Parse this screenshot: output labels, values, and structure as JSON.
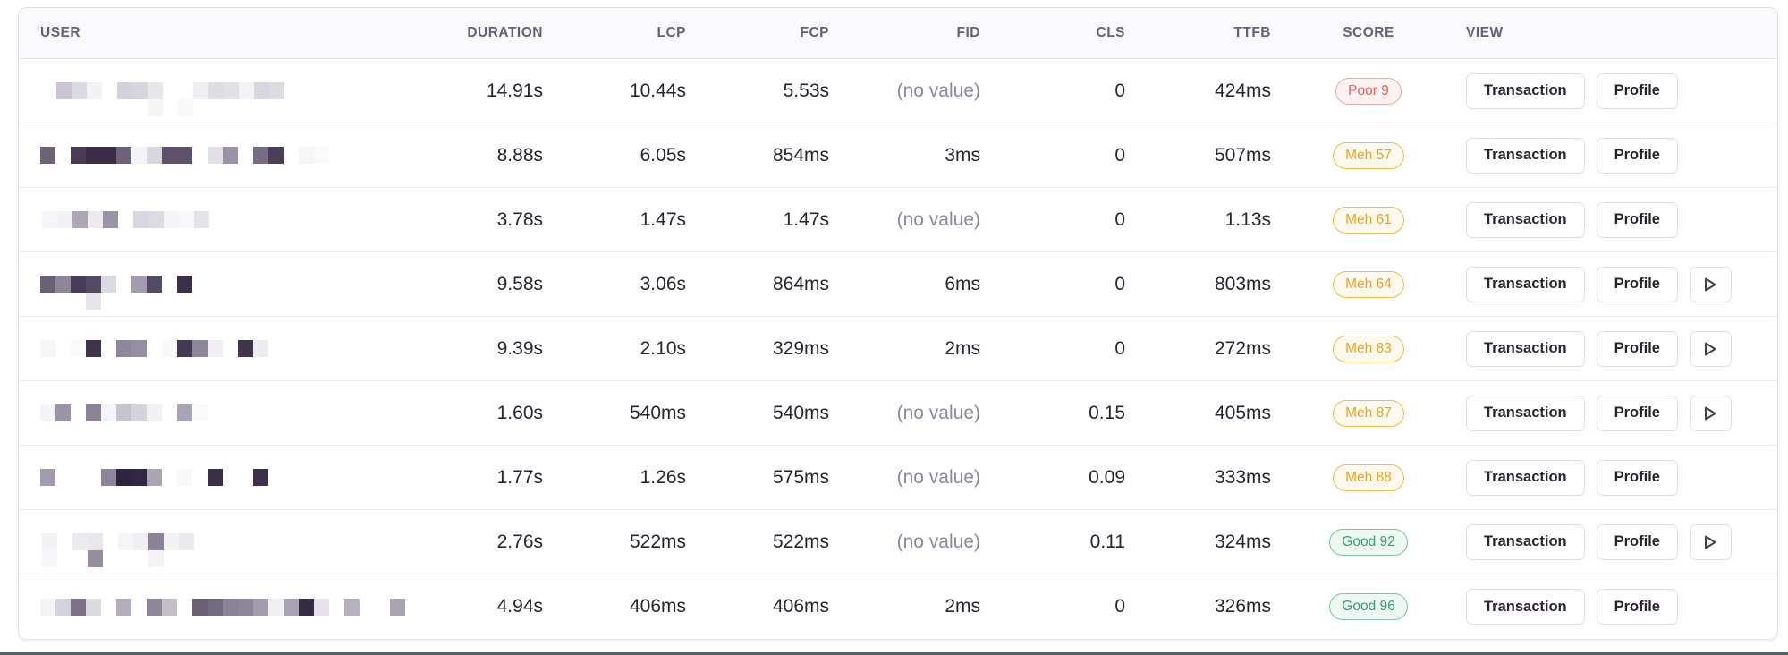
{
  "table": {
    "columns": [
      {
        "key": "user",
        "label": "USER",
        "align": "left"
      },
      {
        "key": "duration",
        "label": "DURATION",
        "align": "right"
      },
      {
        "key": "lcp",
        "label": "LCP",
        "align": "right"
      },
      {
        "key": "fcp",
        "label": "FCP",
        "align": "right"
      },
      {
        "key": "fid",
        "label": "FID",
        "align": "right"
      },
      {
        "key": "cls",
        "label": "CLS",
        "align": "right"
      },
      {
        "key": "ttfb",
        "label": "TTFB",
        "align": "right"
      },
      {
        "key": "score",
        "label": "SCORE",
        "align": "center"
      },
      {
        "key": "view",
        "label": "VIEW",
        "align": "left"
      }
    ],
    "no_value_text": "(no value)",
    "view_buttons": {
      "transaction": "Transaction",
      "profile": "Profile",
      "replay_icon": "play-icon"
    },
    "rows": [
      {
        "user_redacted": {
          "line1": [
            "#c9c6d1",
            "#dbd9e1",
            "#f2f1f5",
            "_",
            "#d3d1d9",
            "#d7d5dc",
            "#e7e6eb",
            "_",
            "_",
            "#f0eff3",
            "#dedce3",
            "#e2e0e7",
            "#f3f2f5",
            "#d7d5dd",
            "#dddbe2"
          ],
          "line2": [
            "_",
            "_",
            "_",
            "_",
            "_",
            "_",
            "#f5f5f8",
            "_",
            "#f8f8fa"
          ],
          "indent": 18
        },
        "duration": "14.91s",
        "lcp": "10.44s",
        "fcp": "5.53s",
        "fid": "(no value)",
        "cls": "0",
        "ttfb": "424ms",
        "score": {
          "label": "Poor 9",
          "level": "poor"
        },
        "has_replay": false
      },
      {
        "user_redacted": {
          "line1": [
            "#6d6378",
            "_",
            "#473c53",
            "#382d45",
            "#382d45",
            "#6d6378",
            "#f4f4f6",
            "#d9d7de",
            "#5e5269",
            "#5e5269",
            "_",
            "#e2e0e6",
            "#9b93a5",
            "_",
            "#766c83",
            "#4a3f57",
            "_",
            "#f6f6f8",
            "#fafafa"
          ],
          "line2": null,
          "indent": 0
        },
        "duration": "8.88s",
        "lcp": "6.05s",
        "fcp": "854ms",
        "fid": "3ms",
        "cls": "0",
        "ttfb": "507ms",
        "score": {
          "label": "Meh 57",
          "level": "meh"
        },
        "has_replay": false
      },
      {
        "user_redacted": {
          "line1": [
            "#f6f6f8",
            "#f2f2f5",
            "#ada7b5",
            "#eceaef",
            "#9a93a5",
            "_",
            "#d8d6de",
            "#dddbe2",
            "#f5f4f7",
            "#f8f8fa",
            "#e4e2e8"
          ],
          "line2": null,
          "indent": 2
        },
        "duration": "3.78s",
        "lcp": "1.47s",
        "fcp": "1.47s",
        "fid": "(no value)",
        "cls": "0",
        "ttfb": "1.13s",
        "score": {
          "label": "Meh 61",
          "level": "meh"
        },
        "has_replay": false
      },
      {
        "user_redacted": {
          "line1": [
            "#6a6076",
            "#8d8598",
            "#473c57",
            "#544a63",
            "#dcdae1",
            "_",
            "#a39cae",
            "#544a63",
            "_",
            "#3b3048"
          ],
          "line2": [
            "_",
            "_",
            "_",
            "#e7e5ea"
          ],
          "indent": 0
        },
        "duration": "9.58s",
        "lcp": "3.06s",
        "fcp": "864ms",
        "fid": "6ms",
        "cls": "0",
        "ttfb": "803ms",
        "score": {
          "label": "Meh 64",
          "level": "meh"
        },
        "has_replay": true
      },
      {
        "user_redacted": {
          "line1": [
            "#f6f6f8",
            "_",
            "#fafafa",
            "#3f344c",
            "_",
            "#8f8799",
            "#968fa0",
            "_",
            "#f8f8fa",
            "#443952",
            "#8d8598",
            "#f0eff3",
            "_",
            "#3f344c",
            "#ececf0"
          ],
          "line2": null,
          "indent": 0
        },
        "duration": "9.39s",
        "lcp": "2.10s",
        "fcp": "329ms",
        "fid": "2ms",
        "cls": "0",
        "ttfb": "272ms",
        "score": {
          "label": "Meh 83",
          "level": "meh"
        },
        "has_replay": true
      },
      {
        "user_redacted": {
          "line1": [
            "#f4f4f6",
            "#9b94a6",
            "_",
            "#8b8395",
            "#f5f5f7",
            "#c7c4cf",
            "#d5d3da",
            "#f2f1f4",
            "_",
            "#aaa4b2",
            "#fafafa"
          ],
          "line2": null,
          "indent": 0
        },
        "duration": "1.60s",
        "lcp": "540ms",
        "fcp": "540ms",
        "fid": "(no value)",
        "cls": "0.15",
        "ttfb": "405ms",
        "score": {
          "label": "Meh 87",
          "level": "meh"
        },
        "has_replay": true
      },
      {
        "user_redacted": {
          "line1": [
            "#a29bad",
            "_",
            "_",
            "_",
            "#8d8599",
            "#2f2440",
            "#312744",
            "#aba4b3",
            "_",
            "#f8f8fa",
            "_",
            "#3a2f47",
            "_",
            "_",
            "#3c3149"
          ],
          "line2": null,
          "indent": 0
        },
        "duration": "1.77s",
        "lcp": "1.26s",
        "fcp": "575ms",
        "fid": "(no value)",
        "cls": "0.09",
        "ttfb": "333ms",
        "score": {
          "label": "Meh 88",
          "level": "meh"
        },
        "has_replay": false
      },
      {
        "user_redacted": {
          "line1": [
            "#f2f2f5",
            "_",
            "#eceaef",
            "#e8e7ec",
            "_",
            "#f6f6f8",
            "#f0eff3",
            "#8b8295",
            "#f2f1f4",
            "#eceaef"
          ],
          "line2": [
            "#f6f6f8",
            "_",
            "_",
            "#958da0",
            "_",
            "_",
            "_",
            "#f4f4f6"
          ],
          "indent": 2
        },
        "duration": "2.76s",
        "lcp": "522ms",
        "fcp": "522ms",
        "fid": "(no value)",
        "cls": "0.11",
        "ttfb": "324ms",
        "score": {
          "label": "Good 92",
          "level": "good"
        },
        "has_replay": true
      },
      {
        "user_redacted": {
          "line1": [
            "#f4f4f6",
            "#d5d3da",
            "#7c7389",
            "#dcdae1",
            "_",
            "#b4aebc",
            "_",
            "#8d8598",
            "#c2bfca",
            "_",
            "#6b6177",
            "#746a81",
            "#8a8295",
            "#8d8598",
            "#a29bad",
            "#f0eff3",
            "#a8a2b1",
            "#362b44",
            "#e4e2e8",
            "_",
            "#b7b1bf",
            "_",
            "_",
            "#aaa4b2"
          ],
          "line2": null,
          "indent": 0
        },
        "duration": "4.94s",
        "lcp": "406ms",
        "fcp": "406ms",
        "fid": "2ms",
        "cls": "0",
        "ttfb": "326ms",
        "score": {
          "label": "Good 96",
          "level": "good"
        },
        "has_replay": false
      }
    ]
  },
  "colors": {
    "value_text": "#2b2233",
    "muted_text": "#8d86a0",
    "header_text": "#696077",
    "header_bg": "#faf9fb",
    "row_border": "#eeecf2",
    "card_border": "#e2dee8",
    "badge_poor_text": "#ee5e52",
    "badge_poor_border": "#f2a6a1",
    "badge_poor_bg": "#fdf2f1",
    "badge_meh_text": "#f0a218",
    "badge_meh_border": "#f3bb45",
    "badge_meh_bg": "#fdf9ec",
    "badge_good_text": "#35a06f",
    "badge_good_border": "#7cc4a4",
    "badge_good_bg": "#edf8f2",
    "button_border": "#e0dce6",
    "play_icon_stroke": "#473d54",
    "bottom_bar": "#4b646f"
  }
}
